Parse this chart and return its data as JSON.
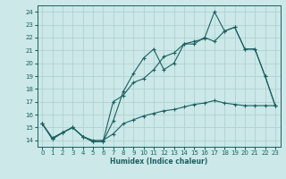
{
  "xlabel": "Humidex (Indice chaleur)",
  "bg_color": "#cce8e8",
  "line_color": "#1a6060",
  "grid_color": "#aacece",
  "xlim": [
    -0.5,
    23.5
  ],
  "ylim": [
    13.5,
    24.5
  ],
  "xticks": [
    0,
    1,
    2,
    3,
    4,
    5,
    6,
    7,
    8,
    9,
    10,
    11,
    12,
    13,
    14,
    15,
    16,
    17,
    18,
    19,
    20,
    21,
    22,
    23
  ],
  "yticks": [
    14,
    15,
    16,
    17,
    18,
    19,
    20,
    21,
    22,
    23,
    24
  ],
  "line1_y": [
    15.3,
    14.1,
    14.6,
    15.0,
    14.3,
    13.9,
    13.9,
    15.5,
    17.8,
    19.2,
    20.4,
    21.1,
    19.5,
    20.0,
    21.5,
    21.7,
    21.9,
    24.0,
    22.5,
    22.8,
    21.1,
    21.1,
    19.0,
    16.7
  ],
  "line2_y": [
    15.3,
    14.1,
    14.6,
    15.0,
    14.3,
    13.9,
    13.9,
    17.0,
    17.5,
    18.5,
    18.8,
    19.5,
    20.5,
    20.8,
    21.5,
    21.5,
    22.0,
    21.7,
    22.5,
    22.8,
    21.1,
    21.1,
    19.0,
    16.7
  ],
  "line3_y": [
    15.3,
    14.2,
    14.6,
    15.0,
    14.3,
    14.0,
    14.0,
    14.5,
    15.3,
    15.6,
    15.9,
    16.1,
    16.3,
    16.4,
    16.6,
    16.8,
    16.9,
    17.1,
    16.9,
    16.8,
    16.7,
    16.7,
    16.7,
    16.7
  ]
}
